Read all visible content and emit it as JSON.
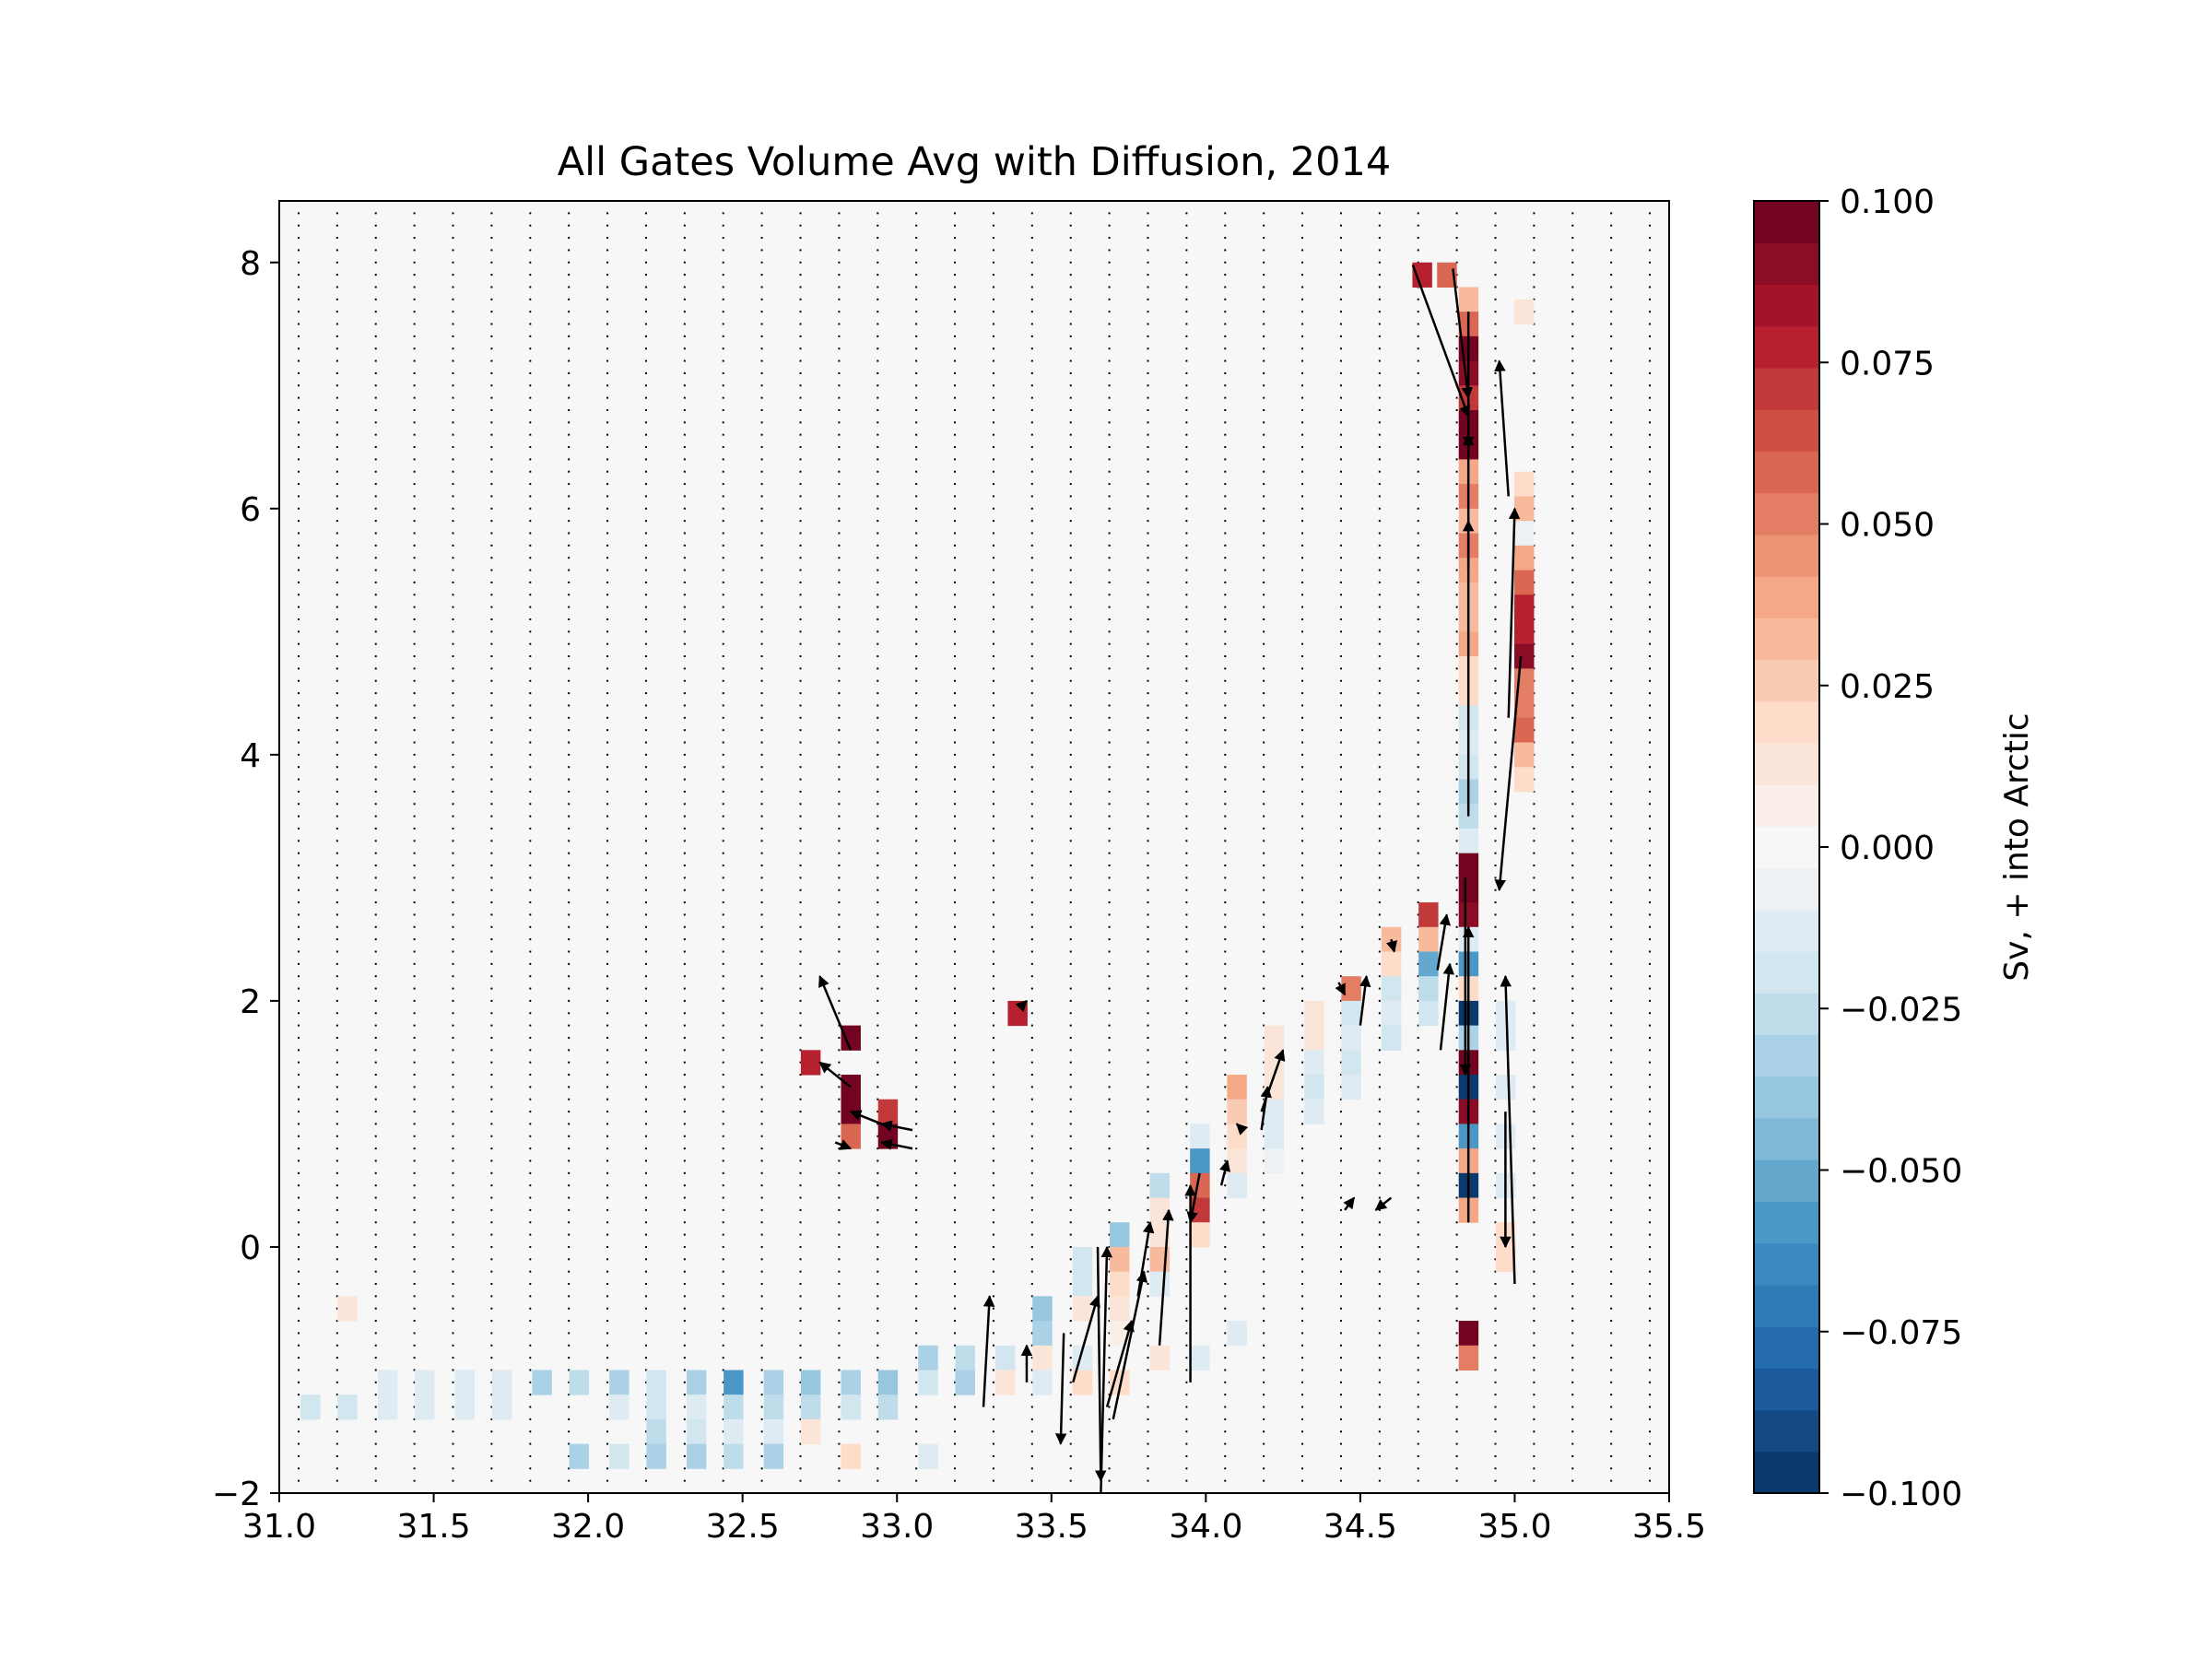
{
  "chart_data": {
    "type": "heatmap",
    "title": "All Gates Volume Avg with Diffusion, 2014",
    "xlabel": "",
    "ylabel": "",
    "xlim": [
      31.0,
      35.5
    ],
    "ylim": [
      -2,
      8.5
    ],
    "xticks": [
      "31.0",
      "31.5",
      "32.0",
      "32.5",
      "33.0",
      "33.5",
      "34.0",
      "34.5",
      "35.0",
      "35.5"
    ],
    "yticks": [
      "−2",
      "0",
      "2",
      "4",
      "6",
      "8"
    ],
    "grid": false,
    "cell_size": {
      "dx": 0.0625,
      "dy": 0.2
    },
    "colorbar": {
      "label": "Sv, + into Arctic",
      "min": -0.1,
      "max": 0.1,
      "levels": 31,
      "ticks": [
        "0.100",
        "0.075",
        "0.050",
        "0.025",
        "0.000",
        "−0.025",
        "−0.050",
        "−0.075",
        "−0.100"
      ]
    },
    "cells": [
      [
        34.7,
        7.9,
        0.08
      ],
      [
        34.78,
        7.9,
        0.06
      ],
      [
        34.85,
        7.7,
        0.03
      ],
      [
        34.85,
        7.5,
        0.06
      ],
      [
        34.85,
        7.3,
        0.1
      ],
      [
        34.85,
        7.1,
        0.09
      ],
      [
        34.85,
        6.9,
        0.07
      ],
      [
        34.85,
        6.7,
        0.1
      ],
      [
        34.85,
        6.5,
        0.1
      ],
      [
        34.85,
        6.3,
        0.04
      ],
      [
        34.85,
        6.1,
        0.05
      ],
      [
        34.85,
        5.9,
        0.03
      ],
      [
        34.85,
        5.7,
        0.05
      ],
      [
        34.85,
        5.5,
        0.04
      ],
      [
        34.85,
        5.3,
        0.03
      ],
      [
        34.85,
        5.1,
        0.03
      ],
      [
        34.85,
        4.9,
        0.04
      ],
      [
        34.85,
        4.7,
        0.02
      ],
      [
        34.85,
        4.5,
        0.02
      ],
      [
        35.03,
        7.6,
        0.015
      ],
      [
        35.03,
        6.2,
        0.02
      ],
      [
        35.03,
        6.0,
        0.03
      ],
      [
        35.03,
        5.8,
        -0.005
      ],
      [
        35.03,
        5.6,
        0.04
      ],
      [
        35.03,
        5.4,
        0.06
      ],
      [
        35.03,
        5.2,
        0.08
      ],
      [
        35.03,
        5.0,
        0.08
      ],
      [
        35.03,
        4.8,
        0.09
      ],
      [
        35.03,
        4.6,
        0.05
      ],
      [
        35.03,
        4.4,
        0.05
      ],
      [
        35.03,
        4.2,
        0.06
      ],
      [
        35.03,
        4.0,
        0.03
      ],
      [
        35.03,
        3.8,
        0.02
      ],
      [
        34.85,
        4.3,
        -0.02
      ],
      [
        34.85,
        4.1,
        -0.015
      ],
      [
        34.85,
        3.9,
        -0.02
      ],
      [
        34.85,
        3.7,
        -0.03
      ],
      [
        34.85,
        3.5,
        -0.025
      ],
      [
        34.85,
        3.3,
        -0.015
      ],
      [
        34.85,
        3.1,
        0.1
      ],
      [
        34.85,
        2.9,
        0.1
      ],
      [
        34.85,
        2.7,
        0.09
      ],
      [
        34.85,
        2.5,
        -0.015
      ],
      [
        34.85,
        2.3,
        -0.06
      ],
      [
        34.85,
        2.1,
        0.02
      ],
      [
        34.85,
        1.9,
        -0.1
      ],
      [
        34.85,
        1.7,
        -0.03
      ],
      [
        34.85,
        1.5,
        0.1
      ],
      [
        34.85,
        1.3,
        -0.1
      ],
      [
        34.85,
        1.1,
        0.09
      ],
      [
        34.85,
        0.9,
        -0.055
      ],
      [
        34.85,
        0.7,
        0.04
      ],
      [
        34.85,
        0.5,
        -0.1
      ],
      [
        34.85,
        0.3,
        0.04
      ],
      [
        34.85,
        -0.7,
        0.1
      ],
      [
        34.85,
        -0.9,
        0.05
      ],
      [
        34.97,
        1.9,
        -0.01
      ],
      [
        34.97,
        1.7,
        -0.015
      ],
      [
        34.97,
        1.3,
        -0.01
      ],
      [
        34.97,
        0.9,
        -0.01
      ],
      [
        34.97,
        0.5,
        -0.01
      ],
      [
        34.97,
        0.1,
        0.02
      ],
      [
        34.97,
        -0.1,
        0.02
      ],
      [
        34.72,
        2.7,
        0.07
      ],
      [
        34.72,
        2.5,
        0.03
      ],
      [
        34.72,
        2.3,
        -0.05
      ],
      [
        34.72,
        2.1,
        -0.025
      ],
      [
        34.72,
        1.9,
        -0.02
      ],
      [
        34.6,
        2.5,
        0.03
      ],
      [
        34.6,
        2.3,
        0.02
      ],
      [
        34.6,
        2.1,
        -0.02
      ],
      [
        34.6,
        1.9,
        -0.015
      ],
      [
        34.6,
        1.7,
        -0.02
      ],
      [
        34.47,
        2.1,
        0.05
      ],
      [
        34.47,
        1.9,
        -0.02
      ],
      [
        34.47,
        1.7,
        -0.015
      ],
      [
        34.47,
        1.5,
        -0.02
      ],
      [
        34.47,
        1.3,
        -0.015
      ],
      [
        34.35,
        1.9,
        0.01
      ],
      [
        34.35,
        1.7,
        0.01
      ],
      [
        34.35,
        1.5,
        -0.015
      ],
      [
        34.35,
        1.3,
        -0.02
      ],
      [
        34.35,
        1.1,
        -0.01
      ],
      [
        34.22,
        1.7,
        0.01
      ],
      [
        34.22,
        1.5,
        0.015
      ],
      [
        34.22,
        1.3,
        0.01
      ],
      [
        34.22,
        1.1,
        -0.01
      ],
      [
        34.22,
        0.9,
        -0.01
      ],
      [
        34.22,
        0.7,
        -0.005
      ],
      [
        34.1,
        1.3,
        0.04
      ],
      [
        34.1,
        1.1,
        0.025
      ],
      [
        34.1,
        0.9,
        0.02
      ],
      [
        34.1,
        0.7,
        0.015
      ],
      [
        34.1,
        0.5,
        -0.01
      ],
      [
        34.1,
        -0.7,
        -0.01
      ],
      [
        33.98,
        0.9,
        -0.01
      ],
      [
        33.98,
        0.7,
        -0.06
      ],
      [
        33.98,
        0.5,
        0.06
      ],
      [
        33.98,
        0.3,
        0.07
      ],
      [
        33.98,
        0.1,
        0.02
      ],
      [
        33.98,
        -0.9,
        -0.01
      ],
      [
        33.85,
        0.5,
        -0.025
      ],
      [
        33.85,
        0.3,
        0.015
      ],
      [
        33.85,
        0.1,
        0.015
      ],
      [
        33.85,
        -0.1,
        0.03
      ],
      [
        33.85,
        -0.3,
        -0.015
      ],
      [
        33.85,
        -0.9,
        0.01
      ],
      [
        33.72,
        0.1,
        -0.04
      ],
      [
        33.72,
        -0.1,
        0.03
      ],
      [
        33.72,
        -0.3,
        0.02
      ],
      [
        33.72,
        -0.5,
        0.01
      ],
      [
        33.72,
        -0.7,
        0.005
      ],
      [
        33.72,
        -1.1,
        0.02
      ],
      [
        33.6,
        -0.1,
        -0.02
      ],
      [
        33.6,
        -0.3,
        -0.02
      ],
      [
        33.6,
        -0.5,
        0.01
      ],
      [
        33.6,
        -0.9,
        -0.01
      ],
      [
        33.6,
        -1.1,
        0.02
      ],
      [
        33.47,
        -0.5,
        -0.04
      ],
      [
        33.47,
        -0.7,
        -0.035
      ],
      [
        33.47,
        -0.9,
        0.01
      ],
      [
        33.47,
        -1.1,
        -0.015
      ],
      [
        33.35,
        -0.9,
        -0.02
      ],
      [
        33.35,
        -1.1,
        0.01
      ],
      [
        33.22,
        -0.9,
        -0.025
      ],
      [
        33.22,
        -1.1,
        -0.03
      ],
      [
        33.1,
        -0.9,
        -0.03
      ],
      [
        33.1,
        -1.1,
        -0.02
      ],
      [
        32.97,
        -1.1,
        -0.04
      ],
      [
        32.97,
        -1.3,
        -0.025
      ],
      [
        32.85,
        -1.1,
        -0.035
      ],
      [
        32.85,
        -1.3,
        -0.02
      ],
      [
        32.72,
        -1.1,
        -0.04
      ],
      [
        32.72,
        -1.3,
        -0.025
      ],
      [
        32.6,
        -1.1,
        -0.03
      ],
      [
        32.6,
        -1.3,
        -0.025
      ],
      [
        32.47,
        -1.1,
        -0.06
      ],
      [
        32.47,
        -1.3,
        -0.025
      ],
      [
        32.35,
        -1.1,
        -0.035
      ],
      [
        32.35,
        -1.3,
        -0.015
      ],
      [
        32.22,
        -1.1,
        -0.02
      ],
      [
        32.22,
        -1.3,
        -0.02
      ],
      [
        32.1,
        -1.1,
        -0.03
      ],
      [
        32.1,
        -1.3,
        -0.015
      ],
      [
        31.97,
        -1.1,
        -0.025
      ],
      [
        31.85,
        -1.1,
        -0.03
      ],
      [
        31.72,
        -1.1,
        -0.015
      ],
      [
        31.72,
        -1.3,
        -0.01
      ],
      [
        31.6,
        -1.1,
        -0.015
      ],
      [
        31.6,
        -1.3,
        -0.015
      ],
      [
        31.47,
        -1.1,
        -0.015
      ],
      [
        31.47,
        -1.3,
        -0.01
      ],
      [
        31.35,
        -1.1,
        -0.01
      ],
      [
        31.35,
        -1.3,
        -0.015
      ],
      [
        31.22,
        -1.3,
        -0.02
      ],
      [
        31.1,
        -1.3,
        -0.02
      ],
      [
        31.22,
        -0.5,
        0.01
      ],
      [
        32.22,
        -1.5,
        -0.025
      ],
      [
        32.35,
        -1.5,
        -0.02
      ],
      [
        32.47,
        -1.5,
        -0.01
      ],
      [
        32.6,
        -1.5,
        -0.01
      ],
      [
        32.72,
        -1.5,
        0.01
      ],
      [
        32.1,
        -1.7,
        -0.02
      ],
      [
        32.22,
        -1.7,
        -0.035
      ],
      [
        32.35,
        -1.7,
        -0.03
      ],
      [
        32.47,
        -1.7,
        -0.025
      ],
      [
        32.6,
        -1.7,
        -0.03
      ],
      [
        31.97,
        -1.7,
        -0.035
      ],
      [
        32.85,
        -1.7,
        0.02
      ],
      [
        33.1,
        -1.7,
        -0.01
      ],
      [
        32.85,
        1.7,
        0.1
      ],
      [
        32.85,
        1.3,
        0.1
      ],
      [
        32.85,
        1.1,
        0.1
      ],
      [
        32.85,
        0.9,
        0.06
      ],
      [
        32.97,
        1.1,
        0.07
      ],
      [
        32.97,
        0.9,
        0.1
      ],
      [
        32.72,
        1.5,
        0.08
      ],
      [
        33.39,
        1.9,
        0.08
      ]
    ],
    "quiver": [
      [
        34.67,
        7.98,
        34.85,
        6.75
      ],
      [
        34.8,
        7.95,
        34.85,
        6.9
      ],
      [
        34.85,
        7.6,
        34.85,
        6.5
      ],
      [
        34.85,
        5.5,
        34.85,
        6.6
      ],
      [
        34.85,
        3.5,
        34.85,
        5.9
      ],
      [
        34.85,
        0.2,
        34.85,
        2.6
      ],
      [
        34.84,
        3.0,
        34.84,
        1.4
      ],
      [
        34.98,
        6.1,
        34.95,
        7.2
      ],
      [
        34.98,
        4.3,
        35.0,
        6.0
      ],
      [
        35.02,
        4.8,
        34.95,
        2.9
      ],
      [
        35.0,
        -0.3,
        34.97,
        2.2
      ],
      [
        34.97,
        1.1,
        34.97,
        0.0
      ],
      [
        34.76,
        1.6,
        34.79,
        2.3
      ],
      [
        34.75,
        2.25,
        34.78,
        2.7
      ],
      [
        34.6,
        2.5,
        34.61,
        2.4
      ],
      [
        34.5,
        1.8,
        34.52,
        2.2
      ],
      [
        34.43,
        2.15,
        34.45,
        2.05
      ],
      [
        34.18,
        1.1,
        34.25,
        1.6
      ],
      [
        34.18,
        0.95,
        34.2,
        1.3
      ],
      [
        34.12,
        0.95,
        34.1,
        1.0
      ],
      [
        34.05,
        0.5,
        34.07,
        0.7
      ],
      [
        33.95,
        -1.1,
        33.95,
        0.5
      ],
      [
        33.85,
        -0.8,
        33.88,
        0.3
      ],
      [
        33.98,
        0.6,
        33.95,
        0.2
      ],
      [
        33.78,
        -0.4,
        33.82,
        0.2
      ],
      [
        33.7,
        -1.4,
        33.8,
        -0.2
      ],
      [
        33.68,
        -1.3,
        33.76,
        -0.6
      ],
      [
        33.66,
        -2.0,
        33.68,
        0.0
      ],
      [
        33.65,
        0.0,
        33.66,
        -1.9
      ],
      [
        33.54,
        -0.7,
        33.53,
        -1.6
      ],
      [
        33.57,
        -1.1,
        33.65,
        -0.4
      ],
      [
        33.42,
        -1.1,
        33.42,
        -0.8
      ],
      [
        33.28,
        -1.3,
        33.3,
        -0.4
      ],
      [
        34.6,
        0.4,
        34.55,
        0.3
      ],
      [
        34.45,
        0.3,
        34.48,
        0.4
      ],
      [
        33.4,
        1.95,
        33.42,
        2.0
      ],
      [
        32.85,
        1.6,
        32.75,
        2.2
      ],
      [
        32.85,
        1.3,
        32.75,
        1.5
      ],
      [
        32.95,
        1.0,
        32.85,
        1.1
      ],
      [
        33.05,
        0.8,
        32.95,
        0.85
      ],
      [
        33.05,
        0.95,
        32.95,
        1.0
      ],
      [
        32.8,
        0.85,
        32.85,
        0.8
      ]
    ]
  }
}
